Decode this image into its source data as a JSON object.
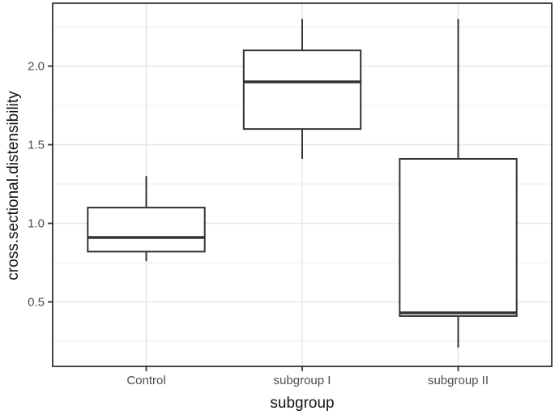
{
  "chart_data": {
    "type": "boxplot",
    "title": "",
    "xlabel": "subgroup",
    "ylabel": "cross.sectional.distensibility",
    "categories": [
      "Control",
      "subgroup I",
      "subgroup II"
    ],
    "series": [
      {
        "category": "Control",
        "min": 0.76,
        "q1": 0.82,
        "median": 0.91,
        "q3": 1.1,
        "max": 1.3
      },
      {
        "category": "subgroup I",
        "min": 1.41,
        "q1": 1.6,
        "median": 1.9,
        "q3": 2.1,
        "max": 2.3
      },
      {
        "category": "subgroup II",
        "min": 0.21,
        "q1": 0.41,
        "median": 0.43,
        "q3": 1.41,
        "max": 2.3
      }
    ],
    "y_ticks": [
      0.5,
      1.0,
      1.5,
      2.0
    ],
    "y_tick_labels": [
      "0.5",
      "1.0",
      "1.5",
      "2.0"
    ],
    "y_minor_ticks": [
      0.25,
      0.75,
      1.25,
      1.75,
      2.25
    ],
    "ylim": [
      0.09,
      2.4
    ],
    "grid": true,
    "legend": false,
    "box_width_fraction": 0.75,
    "colors": {
      "box_stroke": "#333333",
      "box_fill": "#ffffff",
      "panel_border": "#333333",
      "grid_major": "#e7e7e7",
      "grid_minor": "#f1f1f1",
      "tick_mark": "#333333",
      "tick_label": "#4d4d4d",
      "axis_title": "#111111",
      "background": "#ffffff"
    }
  }
}
